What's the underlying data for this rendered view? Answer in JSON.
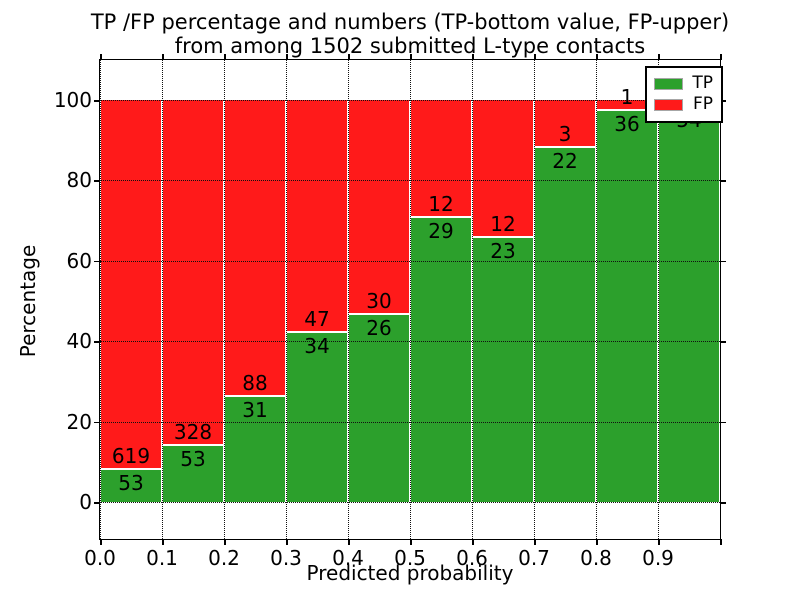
{
  "title": {
    "line1": "TP /FP percentage and numbers (TP-bottom value, FP-upper)",
    "line2": "from among 1502 submitted L-type contacts"
  },
  "axes": {
    "xlabel": "Predicted probability",
    "ylabel": "Percentage",
    "y_tick_labels": [
      "0",
      "20",
      "40",
      "60",
      "80",
      "100"
    ],
    "y_tick_values": [
      0,
      20,
      40,
      60,
      80,
      100
    ],
    "x_tick_labels": [
      "0.0",
      "0.1",
      "0.2",
      "0.3",
      "0.4",
      "0.5",
      "0.6",
      "0.7",
      "0.8",
      "0.9"
    ]
  },
  "legend": {
    "position": "upper right",
    "items": [
      {
        "label": "TP",
        "color": "#2ca02c"
      },
      {
        "label": "FP",
        "color": "#ff1a1a"
      }
    ]
  },
  "colors": {
    "tp": "#2ca02c",
    "fp": "#ff1a1a",
    "grid": "#111111",
    "bar_edge": "#ffffff"
  },
  "chart_data": {
    "type": "bar",
    "stacked": true,
    "normalized_to_percent": true,
    "title": "TP /FP percentage and numbers (TP-bottom value, FP-upper)\nfrom among 1502 submitted L-type contacts",
    "xlabel": "Predicted probability",
    "ylabel": "Percentage",
    "ylim": [
      0,
      100
    ],
    "grid": true,
    "legend_position": "upper right",
    "total_contacts": 1502,
    "x_bin_edges": [
      0.0,
      0.1,
      0.2,
      0.3,
      0.4,
      0.5,
      0.6,
      0.7,
      0.8,
      0.9,
      1.0
    ],
    "categories": [
      "0.0-0.1",
      "0.1-0.2",
      "0.2-0.3",
      "0.3-0.4",
      "0.4-0.5",
      "0.5-0.6",
      "0.6-0.7",
      "0.7-0.8",
      "0.8-0.9",
      "0.9-1.0"
    ],
    "series": [
      {
        "name": "TP",
        "color": "#2ca02c",
        "values": [
          53,
          53,
          31,
          34,
          26,
          29,
          23,
          22,
          36,
          54
        ]
      },
      {
        "name": "FP",
        "color": "#ff1a1a",
        "values": [
          619,
          328,
          88,
          47,
          30,
          12,
          12,
          3,
          1,
          1
        ]
      }
    ],
    "tp_percent_approx": [
      7.9,
      13.9,
      26.1,
      42.0,
      46.4,
      70.7,
      65.7,
      88.0,
      97.3,
      98.2
    ],
    "notes": "Each bar labeled with FP count above the TP/FP boundary and TP count below it; FP label of last bin hidden behind legend"
  }
}
